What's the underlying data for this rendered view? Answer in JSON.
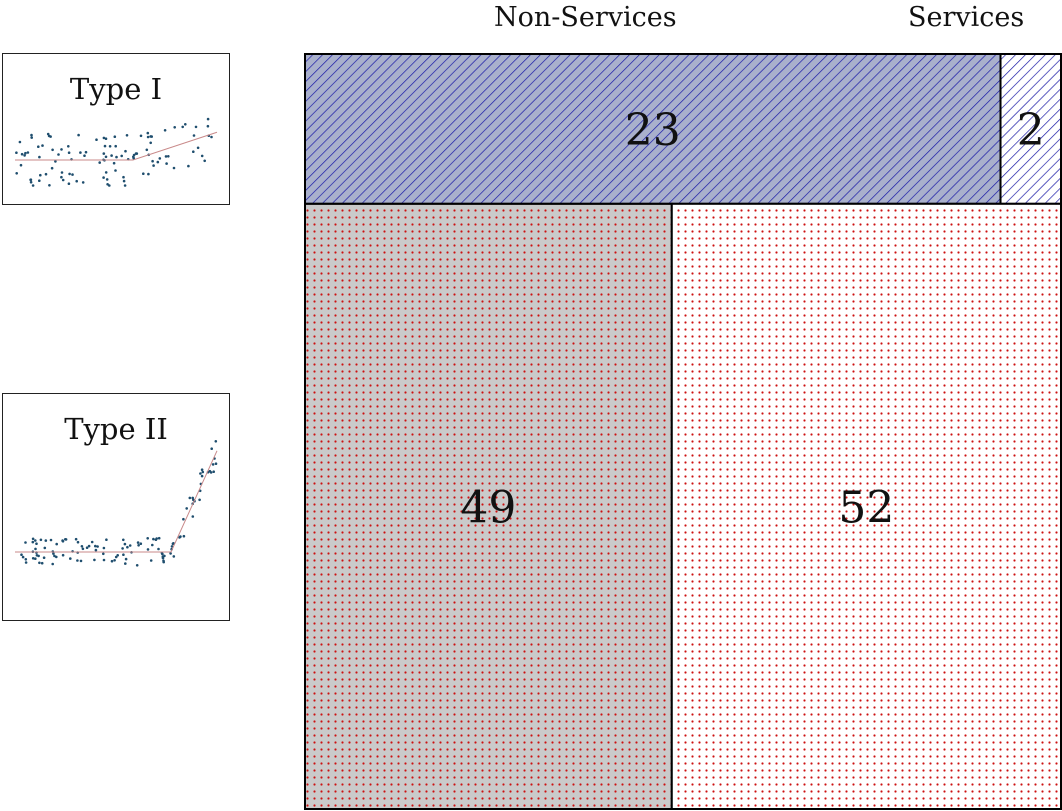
{
  "chart_data": [
    {
      "type": "mosaic",
      "categories": [
        "Non-Services",
        "Services"
      ],
      "rows": [
        "Type I",
        "Type II"
      ],
      "values": [
        [
          23,
          2
        ],
        [
          49,
          52
        ]
      ],
      "colors": {
        "type1": "#1a1aa6",
        "type2": "#cc1111",
        "shade": "#9e9e9e"
      }
    },
    {
      "type": "scatter",
      "title": "Type I",
      "colors": {
        "points": "#1f4e6e",
        "fit": "#c98a8a"
      }
    },
    {
      "type": "scatter",
      "title": "Type II",
      "colors": {
        "points": "#1f4e6e",
        "fit": "#c98a8a"
      }
    }
  ]
}
